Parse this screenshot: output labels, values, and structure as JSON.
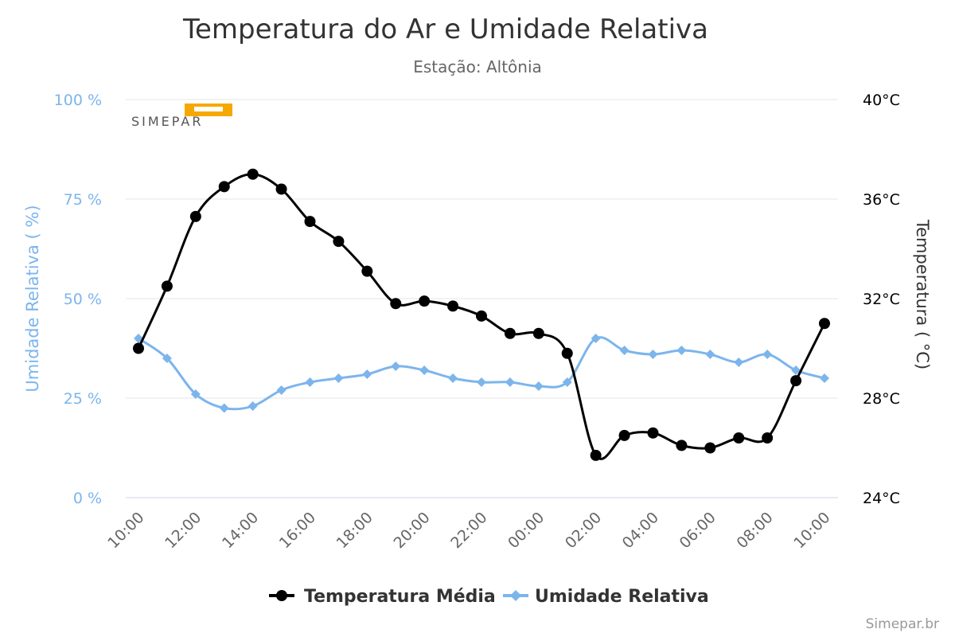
{
  "title": "Temperatura do Ar e Umidade Relativa",
  "subtitle": "Estação: Altônia",
  "credit": "Simepar.br",
  "logo_text": "SIMEPAR",
  "colors": {
    "temperature": "#000000",
    "humidity": "#7cb5ec",
    "grid": "#e6e6e6",
    "text": "#333333"
  },
  "chart_data": {
    "type": "line",
    "categories": [
      "10:00",
      "11:00",
      "12:00",
      "13:00",
      "14:00",
      "15:00",
      "16:00",
      "17:00",
      "18:00",
      "19:00",
      "20:00",
      "21:00",
      "22:00",
      "23:00",
      "00:00",
      "01:00",
      "02:00",
      "03:00",
      "04:00",
      "05:00",
      "06:00",
      "07:00",
      "08:00",
      "09:00",
      "10:00"
    ],
    "x_tick_labels": [
      "10:00",
      "12:00",
      "14:00",
      "16:00",
      "18:00",
      "20:00",
      "22:00",
      "00:00",
      "02:00",
      "04:00",
      "06:00",
      "08:00",
      "10:00"
    ],
    "series": [
      {
        "name": "Temperatura Média",
        "axis": "right",
        "marker": "circle",
        "values": [
          30.0,
          32.5,
          35.3,
          36.5,
          37.0,
          36.4,
          35.1,
          34.3,
          33.1,
          31.8,
          31.9,
          31.7,
          31.3,
          30.6,
          30.6,
          29.8,
          25.7,
          26.5,
          26.6,
          26.1,
          26.0,
          26.4,
          26.4,
          28.7,
          31.0
        ]
      },
      {
        "name": "Umidade Relativa",
        "axis": "left",
        "marker": "diamond",
        "values": [
          40,
          35,
          26,
          22.5,
          23,
          27,
          29,
          30,
          31,
          33,
          32,
          30,
          29,
          29,
          28,
          29,
          40,
          37,
          36,
          37,
          36,
          34,
          36,
          32,
          30
        ]
      }
    ],
    "y_left": {
      "label": "Umidade Relativa ( %)",
      "range": [
        0,
        100
      ],
      "ticks": [
        "0 %",
        "25 %",
        "50 %",
        "75 %",
        "100 %"
      ]
    },
    "y_right": {
      "label": "Temperatura ( °C)",
      "range": [
        24,
        40
      ],
      "ticks": [
        "24°C",
        "28°C",
        "32°C",
        "36°C",
        "40°C"
      ]
    },
    "grid": true,
    "legend_position": "bottom-center"
  }
}
